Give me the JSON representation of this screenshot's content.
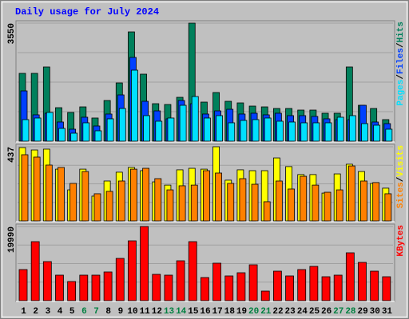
{
  "chart_data": [
    {
      "type": "bar",
      "title": "Daily usage for July 2024",
      "ylim": [
        0,
        3550
      ],
      "yticks": [
        3550
      ],
      "legend_separator": "/",
      "series": [
        {
          "name": "Pages",
          "color": "#00e0ff",
          "values": [
            648,
            696,
            864,
            384,
            240,
            552,
            312,
            672,
            983,
            2135,
            768,
            600,
            696,
            1079,
            1343,
            696,
            768,
            552,
            624,
            648,
            696,
            600,
            576,
            552,
            552,
            552,
            720,
            768,
            528,
            480,
            360
          ]
        },
        {
          "name": "Files",
          "color": "#0040ff",
          "values": [
            1511,
            792,
            840,
            576,
            360,
            720,
            456,
            816,
            1391,
            2519,
            1199,
            911,
            672,
            1223,
            1127,
            816,
            911,
            959,
            816,
            840,
            792,
            840,
            768,
            768,
            744,
            672,
            648,
            648,
            1079,
            576,
            528
          ]
        },
        {
          "name": "Hits",
          "color": "#00805c",
          "values": [
            2039,
            2039,
            2231,
            1007,
            863,
            1031,
            696,
            1223,
            1751,
            3286,
            2015,
            1127,
            1103,
            1319,
            3550,
            1175,
            1463,
            1199,
            1151,
            1055,
            1031,
            983,
            983,
            935,
            935,
            840,
            840,
            2231,
            1079,
            983,
            648
          ]
        }
      ]
    },
    {
      "type": "bar",
      "ylim": [
        0,
        437
      ],
      "yticks": [
        437
      ],
      "legend_separator": "/",
      "series": [
        {
          "name": "Sites",
          "color": "#ff8000",
          "values": [
            390,
            376,
            329,
            315,
            221,
            291,
            160,
            174,
            235,
            305,
            310,
            249,
            183,
            207,
            211,
            296,
            282,
            221,
            249,
            216,
            113,
            235,
            188,
            263,
            211,
            169,
            183,
            324,
            235,
            226,
            160
          ]
        },
        {
          "name": "Visits",
          "color": "#ffff00",
          "values": [
            432,
            418,
            423,
            305,
            183,
            305,
            146,
            235,
            287,
            315,
            296,
            230,
            211,
            301,
            310,
            305,
            437,
            240,
            301,
            296,
            296,
            371,
            320,
            273,
            273,
            164,
            277,
            334,
            291,
            221,
            193
          ]
        }
      ]
    },
    {
      "type": "bar",
      "ylim": [
        0,
        19990
      ],
      "yticks": [
        19990
      ],
      "categories": [
        "1",
        "2",
        "3",
        "4",
        "5",
        "6",
        "7",
        "8",
        "9",
        "10",
        "11",
        "12",
        "13",
        "14",
        "15",
        "16",
        "17",
        "18",
        "19",
        "20",
        "21",
        "22",
        "23",
        "24",
        "25",
        "26",
        "27",
        "28",
        "29",
        "30",
        "31"
      ],
      "category_colors": [
        "#000000",
        "#000000",
        "#000000",
        "#000000",
        "#000000",
        "#008040",
        "#008040",
        "#000000",
        "#000000",
        "#000000",
        "#000000",
        "#000000",
        "#008040",
        "#008040",
        "#000000",
        "#000000",
        "#000000",
        "#000000",
        "#000000",
        "#008040",
        "#008040",
        "#000000",
        "#000000",
        "#000000",
        "#000000",
        "#000000",
        "#008040",
        "#008040",
        "#000000",
        "#000000",
        "#000000"
      ],
      "series": [
        {
          "name": "KBytes",
          "color": "#ff0000",
          "values": [
            8383,
            15906,
            10532,
            6878,
            5159,
            6878,
            6878,
            7738,
            11392,
            16121,
            19990,
            7093,
            6878,
            10747,
            15906,
            6233,
            10102,
            6663,
            7523,
            9672,
            2579,
            7953,
            6663,
            8383,
            9242,
            6448,
            6878,
            12897,
            10317,
            7953,
            6448
          ]
        }
      ]
    }
  ]
}
